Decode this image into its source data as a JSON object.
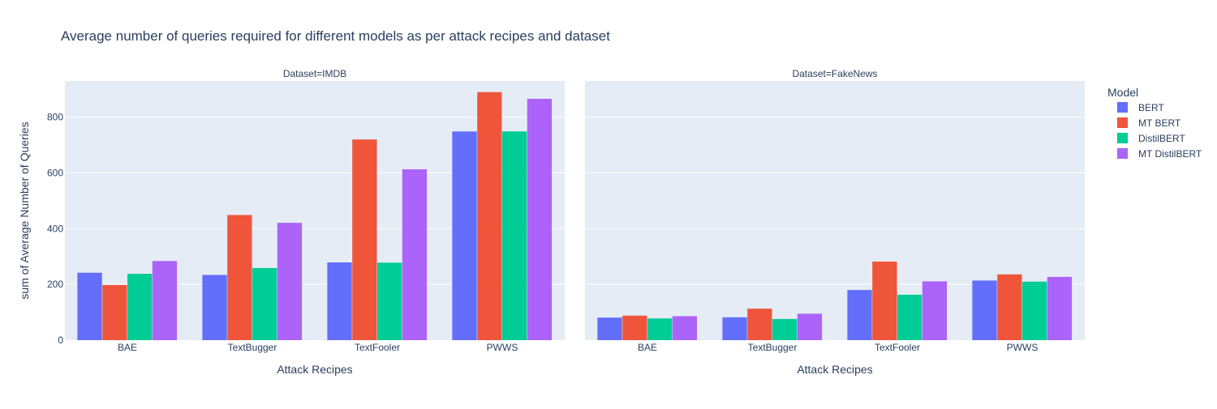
{
  "chart_data": {
    "type": "bar",
    "title": "Average number of queries required for different models as per attack recipes and dataset",
    "ylabel": "sum of Average Number of Queries",
    "ylim": [
      0,
      930
    ],
    "yticks": [
      0,
      200,
      400,
      600,
      800
    ],
    "grid": true,
    "legend": {
      "title": "Model",
      "placement": "top-right"
    },
    "series": [
      {
        "name": "BERT",
        "color": "#636efa"
      },
      {
        "name": "MT BERT",
        "color": "#ef553b"
      },
      {
        "name": "DistilBERT",
        "color": "#00cc96"
      },
      {
        "name": "MT DistilBERT",
        "color": "#ab63fa"
      }
    ],
    "facets": [
      {
        "label": "Dataset=IMDB",
        "xlabel": "Attack Recipes",
        "categories": [
          "BAE",
          "TextBugger",
          "TextFooler",
          "PWWS"
        ],
        "values": [
          [
            242,
            234,
            279,
            749
          ],
          [
            198,
            449,
            720,
            890
          ],
          [
            238,
            259,
            278,
            749
          ],
          [
            284,
            421,
            613,
            866
          ]
        ]
      },
      {
        "label": "Dataset=FakeNews",
        "xlabel": "Attack Recipes",
        "categories": [
          "BAE",
          "TextBugger",
          "TextFooler",
          "PWWS"
        ],
        "values": [
          [
            81,
            82,
            180,
            214
          ],
          [
            88,
            113,
            282,
            236
          ],
          [
            78,
            76,
            163,
            210
          ],
          [
            86,
            95,
            211,
            227
          ]
        ]
      }
    ]
  }
}
